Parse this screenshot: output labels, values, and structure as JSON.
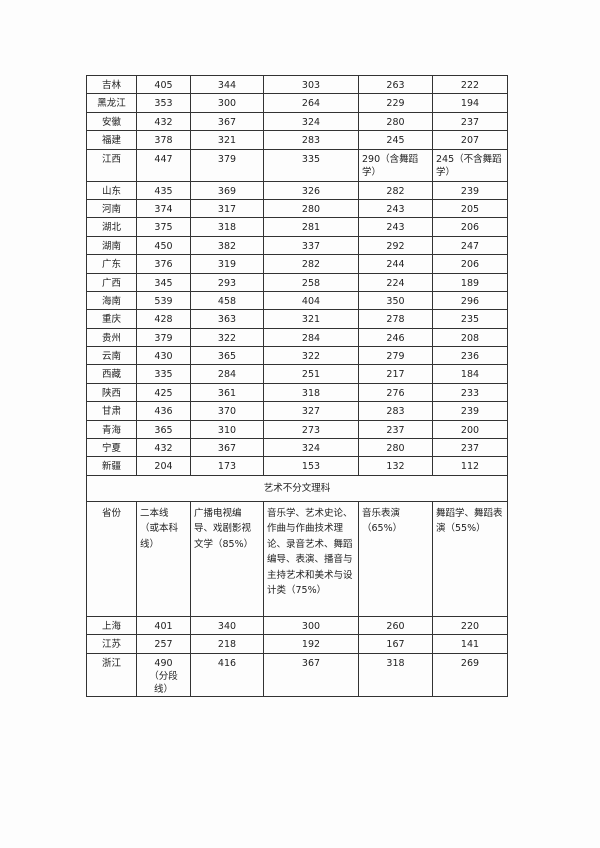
{
  "table1": {
    "rows": [
      [
        "吉林",
        "405",
        "344",
        "303",
        "263",
        "222"
      ],
      [
        "黑龙江",
        "353",
        "300",
        "264",
        "229",
        "194"
      ],
      [
        "安徽",
        "432",
        "367",
        "324",
        "280",
        "237"
      ],
      [
        "福建",
        "378",
        "321",
        "283",
        "245",
        "207"
      ],
      [
        "江西",
        "447",
        "379",
        "335",
        "290（含舞蹈学）",
        "245（不含舞蹈学）"
      ],
      [
        "山东",
        "435",
        "369",
        "326",
        "282",
        "239"
      ],
      [
        "河南",
        "374",
        "317",
        "280",
        "243",
        "205"
      ],
      [
        "湖北",
        "375",
        "318",
        "281",
        "243",
        "206"
      ],
      [
        "湖南",
        "450",
        "382",
        "337",
        "292",
        "247"
      ],
      [
        "广东",
        "376",
        "319",
        "282",
        "244",
        "206"
      ],
      [
        "广西",
        "345",
        "293",
        "258",
        "224",
        "189"
      ],
      [
        "海南",
        "539",
        "458",
        "404",
        "350",
        "296"
      ],
      [
        "重庆",
        "428",
        "363",
        "321",
        "278",
        "235"
      ],
      [
        "贵州",
        "379",
        "322",
        "284",
        "246",
        "208"
      ],
      [
        "云南",
        "430",
        "365",
        "322",
        "279",
        "236"
      ],
      [
        "西藏",
        "335",
        "284",
        "251",
        "217",
        "184"
      ],
      [
        "陕西",
        "425",
        "361",
        "318",
        "276",
        "233"
      ],
      [
        "甘肃",
        "436",
        "370",
        "327",
        "283",
        "239"
      ],
      [
        "青海",
        "365",
        "310",
        "273",
        "237",
        "200"
      ],
      [
        "宁夏",
        "432",
        "367",
        "324",
        "280",
        "237"
      ],
      [
        "新疆",
        "204",
        "173",
        "153",
        "132",
        "112"
      ]
    ]
  },
  "section_title": "艺术不分文理科",
  "table2": {
    "headers": [
      "省份",
      "二本线（或本科线）",
      "广播电视编导、戏剧影视文学（85%）",
      "音乐学、艺术史论、作曲与作曲技术理论、录音艺术、舞蹈编导、表演、播音与主持艺术和美术与设计类（75%）",
      "音乐表演（65%）",
      "舞蹈学、舞蹈表演（55%）"
    ],
    "rows": [
      [
        "上海",
        "401",
        "340",
        "300",
        "260",
        "220"
      ],
      [
        "江苏",
        "257",
        "218",
        "192",
        "167",
        "141"
      ],
      [
        "浙江",
        "490（分段线）",
        "416",
        "367",
        "318",
        "269"
      ]
    ]
  }
}
